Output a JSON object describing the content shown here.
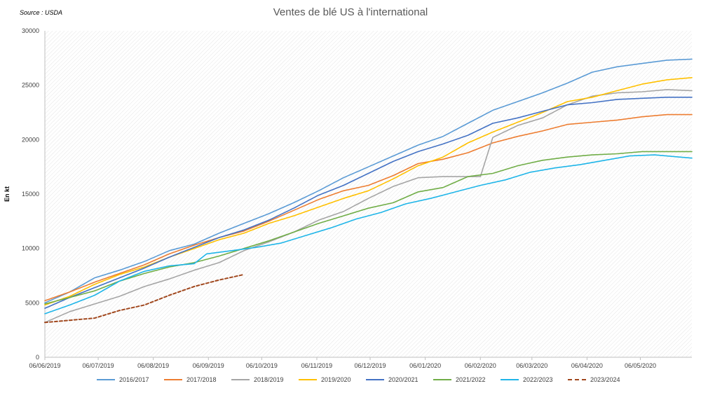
{
  "source": "Source : USDA",
  "chart_data": {
    "type": "line",
    "title": "Ventes de blé US à l'international",
    "ylabel": "En kt",
    "xlabel": "",
    "ylim": [
      0,
      30000
    ],
    "yticks": [
      0,
      5000,
      10000,
      15000,
      20000,
      25000,
      30000
    ],
    "xtick_labels": [
      "06/06/2019",
      "06/07/2019",
      "06/08/2019",
      "06/09/2019",
      "06/10/2019",
      "06/11/2019",
      "06/12/2019",
      "06/01/2020",
      "06/02/2020",
      "06/03/2020",
      "06/04/2020",
      "06/05/2020"
    ],
    "x_start": "2019-06-06",
    "x_end": "2020-06-04",
    "grid": false,
    "legend_position": "bottom",
    "series": [
      {
        "name": "2016/2017",
        "color": "#5b9bd5",
        "dashed": false,
        "points": [
          [
            "2019-06-06",
            5000
          ],
          [
            "2019-06-20",
            6000
          ],
          [
            "2019-07-04",
            7300
          ],
          [
            "2019-07-18",
            8000
          ],
          [
            "2019-08-01",
            8800
          ],
          [
            "2019-08-15",
            9800
          ],
          [
            "2019-08-29",
            10400
          ],
          [
            "2019-09-12",
            11400
          ],
          [
            "2019-09-26",
            12300
          ],
          [
            "2019-10-10",
            13200
          ],
          [
            "2019-10-24",
            14200
          ],
          [
            "2019-11-07",
            15300
          ],
          [
            "2019-11-21",
            16500
          ],
          [
            "2019-12-05",
            17500
          ],
          [
            "2019-12-19",
            18500
          ],
          [
            "2020-01-02",
            19500
          ],
          [
            "2020-01-16",
            20300
          ],
          [
            "2020-01-30",
            21500
          ],
          [
            "2020-02-13",
            22700
          ],
          [
            "2020-02-27",
            23500
          ],
          [
            "2020-03-12",
            24300
          ],
          [
            "2020-03-26",
            25200
          ],
          [
            "2020-04-09",
            26200
          ],
          [
            "2020-04-23",
            26700
          ],
          [
            "2020-05-07",
            27000
          ],
          [
            "2020-05-21",
            27300
          ],
          [
            "2020-06-04",
            27400
          ]
        ]
      },
      {
        "name": "2017/2018",
        "color": "#ed7d31",
        "dashed": false,
        "points": [
          [
            "2019-06-06",
            5200
          ],
          [
            "2019-06-20",
            6000
          ],
          [
            "2019-07-04",
            6900
          ],
          [
            "2019-07-18",
            7700
          ],
          [
            "2019-08-01",
            8500
          ],
          [
            "2019-08-15",
            9500
          ],
          [
            "2019-08-29",
            10300
          ],
          [
            "2019-09-12",
            11000
          ],
          [
            "2019-09-26",
            11600
          ],
          [
            "2019-10-10",
            12500
          ],
          [
            "2019-10-24",
            13500
          ],
          [
            "2019-11-07",
            14500
          ],
          [
            "2019-11-21",
            15300
          ],
          [
            "2019-12-05",
            15800
          ],
          [
            "2019-12-19",
            16700
          ],
          [
            "2020-01-02",
            17800
          ],
          [
            "2020-01-16",
            18200
          ],
          [
            "2020-01-30",
            18800
          ],
          [
            "2020-02-13",
            19700
          ],
          [
            "2020-02-27",
            20300
          ],
          [
            "2020-03-12",
            20800
          ],
          [
            "2020-03-26",
            21400
          ],
          [
            "2020-04-09",
            21600
          ],
          [
            "2020-04-23",
            21800
          ],
          [
            "2020-05-07",
            22100
          ],
          [
            "2020-05-21",
            22300
          ],
          [
            "2020-06-04",
            22300
          ]
        ]
      },
      {
        "name": "2018/2019",
        "color": "#a5a5a5",
        "dashed": false,
        "points": [
          [
            "2019-06-06",
            3200
          ],
          [
            "2019-06-20",
            4200
          ],
          [
            "2019-07-04",
            4900
          ],
          [
            "2019-07-18",
            5600
          ],
          [
            "2019-08-01",
            6500
          ],
          [
            "2019-08-15",
            7200
          ],
          [
            "2019-08-29",
            8000
          ],
          [
            "2019-09-12",
            8700
          ],
          [
            "2019-09-26",
            9800
          ],
          [
            "2019-10-10",
            10600
          ],
          [
            "2019-10-24",
            11500
          ],
          [
            "2019-11-07",
            12600
          ],
          [
            "2019-11-21",
            13400
          ],
          [
            "2019-12-05",
            14600
          ],
          [
            "2019-12-19",
            15700
          ],
          [
            "2020-01-02",
            16500
          ],
          [
            "2020-01-16",
            16600
          ],
          [
            "2020-01-30",
            16600
          ],
          [
            "2020-02-06",
            16600
          ],
          [
            "2020-02-13",
            20200
          ],
          [
            "2020-02-27",
            21300
          ],
          [
            "2020-03-12",
            22000
          ],
          [
            "2020-03-26",
            23200
          ],
          [
            "2020-04-09",
            24000
          ],
          [
            "2020-04-23",
            24300
          ],
          [
            "2020-05-07",
            24400
          ],
          [
            "2020-05-21",
            24600
          ],
          [
            "2020-06-04",
            24500
          ]
        ]
      },
      {
        "name": "2019/2020",
        "color": "#ffc000",
        "dashed": false,
        "points": [
          [
            "2019-06-06",
            4800
          ],
          [
            "2019-06-20",
            5600
          ],
          [
            "2019-07-04",
            6700
          ],
          [
            "2019-07-18",
            7600
          ],
          [
            "2019-08-01",
            8300
          ],
          [
            "2019-08-15",
            9200
          ],
          [
            "2019-08-29",
            10000
          ],
          [
            "2019-09-12",
            10800
          ],
          [
            "2019-09-26",
            11400
          ],
          [
            "2019-10-10",
            12300
          ],
          [
            "2019-10-24",
            13000
          ],
          [
            "2019-11-07",
            13800
          ],
          [
            "2019-11-21",
            14600
          ],
          [
            "2019-12-05",
            15300
          ],
          [
            "2019-12-19",
            16400
          ],
          [
            "2020-01-02",
            17600
          ],
          [
            "2020-01-16",
            18400
          ],
          [
            "2020-01-30",
            19700
          ],
          [
            "2020-02-13",
            20700
          ],
          [
            "2020-02-27",
            21600
          ],
          [
            "2020-03-12",
            22500
          ],
          [
            "2020-03-26",
            23500
          ],
          [
            "2020-04-09",
            23900
          ],
          [
            "2020-04-23",
            24500
          ],
          [
            "2020-05-07",
            25100
          ],
          [
            "2020-05-21",
            25500
          ],
          [
            "2020-06-04",
            25700
          ]
        ]
      },
      {
        "name": "2020/2021",
        "color": "#4472c4",
        "dashed": false,
        "points": [
          [
            "2019-06-06",
            4500
          ],
          [
            "2019-06-20",
            5500
          ],
          [
            "2019-07-04",
            6400
          ],
          [
            "2019-07-18",
            7300
          ],
          [
            "2019-08-01",
            8200
          ],
          [
            "2019-08-15",
            9200
          ],
          [
            "2019-08-29",
            10100
          ],
          [
            "2019-09-12",
            11000
          ],
          [
            "2019-09-26",
            11700
          ],
          [
            "2019-10-10",
            12600
          ],
          [
            "2019-10-24",
            13700
          ],
          [
            "2019-11-07",
            14900
          ],
          [
            "2019-11-21",
            15800
          ],
          [
            "2019-12-05",
            16900
          ],
          [
            "2019-12-19",
            18000
          ],
          [
            "2020-01-02",
            18900
          ],
          [
            "2020-01-16",
            19600
          ],
          [
            "2020-01-30",
            20400
          ],
          [
            "2020-02-13",
            21500
          ],
          [
            "2020-02-27",
            22000
          ],
          [
            "2020-03-12",
            22600
          ],
          [
            "2020-03-26",
            23200
          ],
          [
            "2020-04-09",
            23400
          ],
          [
            "2020-04-23",
            23700
          ],
          [
            "2020-05-07",
            23800
          ],
          [
            "2020-05-21",
            23900
          ],
          [
            "2020-06-04",
            23900
          ]
        ]
      },
      {
        "name": "2021/2022",
        "color": "#70ad47",
        "dashed": false,
        "points": [
          [
            "2019-06-06",
            4900
          ],
          [
            "2019-06-20",
            5500
          ],
          [
            "2019-07-04",
            6100
          ],
          [
            "2019-07-18",
            7000
          ],
          [
            "2019-08-01",
            7700
          ],
          [
            "2019-08-15",
            8300
          ],
          [
            "2019-08-29",
            8700
          ],
          [
            "2019-09-12",
            9300
          ],
          [
            "2019-09-26",
            10000
          ],
          [
            "2019-10-10",
            10700
          ],
          [
            "2019-10-24",
            11500
          ],
          [
            "2019-11-07",
            12300
          ],
          [
            "2019-11-21",
            13000
          ],
          [
            "2019-12-05",
            13700
          ],
          [
            "2019-12-19",
            14200
          ],
          [
            "2020-01-02",
            15200
          ],
          [
            "2020-01-16",
            15600
          ],
          [
            "2020-01-30",
            16600
          ],
          [
            "2020-02-13",
            16900
          ],
          [
            "2020-02-27",
            17600
          ],
          [
            "2020-03-12",
            18100
          ],
          [
            "2020-03-26",
            18400
          ],
          [
            "2020-04-09",
            18600
          ],
          [
            "2020-04-23",
            18700
          ],
          [
            "2020-05-07",
            18900
          ],
          [
            "2020-05-21",
            18900
          ],
          [
            "2020-06-04",
            18900
          ]
        ]
      },
      {
        "name": "2022/2023",
        "color": "#1fb5e8",
        "dashed": false,
        "points": [
          [
            "2019-06-06",
            4000
          ],
          [
            "2019-06-20",
            4800
          ],
          [
            "2019-07-04",
            5700
          ],
          [
            "2019-07-18",
            7000
          ],
          [
            "2019-08-01",
            7900
          ],
          [
            "2019-08-15",
            8400
          ],
          [
            "2019-08-29",
            8600
          ],
          [
            "2019-09-05",
            9500
          ],
          [
            "2019-09-19",
            9800
          ],
          [
            "2019-10-03",
            10100
          ],
          [
            "2019-10-17",
            10500
          ],
          [
            "2019-10-31",
            11200
          ],
          [
            "2019-11-14",
            11900
          ],
          [
            "2019-11-28",
            12700
          ],
          [
            "2019-12-12",
            13300
          ],
          [
            "2019-12-26",
            14100
          ],
          [
            "2020-01-09",
            14600
          ],
          [
            "2020-01-23",
            15200
          ],
          [
            "2020-02-06",
            15800
          ],
          [
            "2020-02-20",
            16300
          ],
          [
            "2020-03-05",
            17000
          ],
          [
            "2020-03-19",
            17400
          ],
          [
            "2020-04-02",
            17700
          ],
          [
            "2020-04-16",
            18100
          ],
          [
            "2020-04-30",
            18500
          ],
          [
            "2020-05-14",
            18600
          ],
          [
            "2020-05-28",
            18400
          ],
          [
            "2020-06-04",
            18300
          ]
        ]
      },
      {
        "name": "2023/2024",
        "color": "#a0471d",
        "dashed": true,
        "points": [
          [
            "2019-06-06",
            3200
          ],
          [
            "2019-06-20",
            3400
          ],
          [
            "2019-07-04",
            3600
          ],
          [
            "2019-07-18",
            4300
          ],
          [
            "2019-08-01",
            4800
          ],
          [
            "2019-08-15",
            5700
          ],
          [
            "2019-08-29",
            6500
          ],
          [
            "2019-09-12",
            7100
          ],
          [
            "2019-09-26",
            7600
          ]
        ]
      }
    ]
  }
}
